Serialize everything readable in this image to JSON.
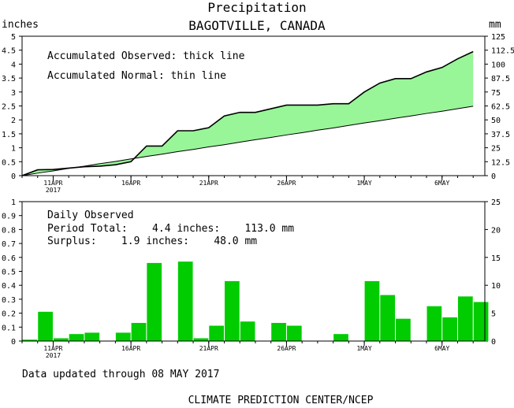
{
  "title": "Precipitation",
  "subtitle": "BAGOTVILLE, CANADA",
  "footer_updated": "Data updated through 08 MAY 2017",
  "footer_credit": "CLIMATE PREDICTION CENTER/NCEP",
  "colors": {
    "accum_fill": "#98f598",
    "bar_fill": "#00cc00",
    "line": "#000000"
  },
  "chart_data": [
    {
      "type": "area",
      "left_unit_label": "inches",
      "right_unit_label": "mm",
      "legend_observed": "Accumulated Observed: thick line",
      "legend_normal": "Accumulated Normal: thin line",
      "ylim": [
        0,
        5
      ],
      "yticks": [
        "0",
        "0.5",
        "1",
        "1.5",
        "2",
        "2.5",
        "3",
        "3.5",
        "4",
        "4.5",
        "5"
      ],
      "y2ticks": [
        "0",
        "12.5",
        "25",
        "37.5",
        "50",
        "62.5",
        "75",
        "87.5",
        "100",
        "112.5",
        "125"
      ],
      "x_day_range": [
        9,
        38
      ],
      "xticks": [
        {
          "day": 11,
          "label": "11APR",
          "sub": "2017"
        },
        {
          "day": 16,
          "label": "16APR",
          "sub": ""
        },
        {
          "day": 21,
          "label": "21APR",
          "sub": ""
        },
        {
          "day": 26,
          "label": "26APR",
          "sub": ""
        },
        {
          "day": 31,
          "label": "1MAY",
          "sub": ""
        },
        {
          "day": 36,
          "label": "6MAY",
          "sub": ""
        }
      ],
      "x": [
        9,
        10,
        11,
        12,
        13,
        14,
        15,
        16,
        17,
        18,
        19,
        20,
        21,
        22,
        23,
        24,
        25,
        26,
        27,
        28,
        29,
        30,
        31,
        32,
        33,
        34,
        35,
        36,
        37,
        38
      ],
      "series": [
        {
          "role": "observed",
          "values": [
            0,
            0.21,
            0.22,
            0.27,
            0.32,
            0.34,
            0.39,
            0.5,
            1.06,
            1.06,
            1.61,
            1.61,
            1.72,
            2.14,
            2.27,
            2.27,
            2.4,
            2.53,
            2.53,
            2.53,
            2.58,
            2.58,
            3.0,
            3.32,
            3.48,
            3.48,
            3.72,
            3.88,
            4.19,
            4.45
          ]
        },
        {
          "role": "normal",
          "values": [
            0,
            0.09,
            0.17,
            0.26,
            0.34,
            0.43,
            0.51,
            0.6,
            0.69,
            0.77,
            0.86,
            0.94,
            1.03,
            1.11,
            1.2,
            1.29,
            1.37,
            1.46,
            1.54,
            1.63,
            1.71,
            1.8,
            1.89,
            1.97,
            2.06,
            2.14,
            2.23,
            2.31,
            2.4,
            2.49
          ]
        }
      ]
    },
    {
      "type": "bar",
      "legend_title": "Daily Observed",
      "period_total": "Period Total:    4.4 inches:    113.0 mm",
      "surplus": "Surplus:    1.9 inches:    48.0 mm",
      "ylim": [
        0,
        1
      ],
      "yticks": [
        "0",
        "0.1",
        "0.2",
        "0.3",
        "0.4",
        "0.5",
        "0.6",
        "0.7",
        "0.8",
        "0.9",
        "1"
      ],
      "y2ticks": [
        "0",
        "5",
        "10",
        "15",
        "20",
        "25"
      ],
      "xticks": [
        {
          "day": 11,
          "label": "11APR",
          "sub": "2017"
        },
        {
          "day": 16,
          "label": "16APR",
          "sub": ""
        },
        {
          "day": 21,
          "label": "21APR",
          "sub": ""
        },
        {
          "day": 26,
          "label": "26APR",
          "sub": ""
        },
        {
          "day": 31,
          "label": "1MAY",
          "sub": ""
        },
        {
          "day": 36,
          "label": "6MAY",
          "sub": ""
        }
      ],
      "days": [
        9,
        10,
        11,
        12,
        13,
        14,
        15,
        16,
        17,
        18,
        19,
        20,
        21,
        22,
        23,
        24,
        25,
        26,
        27,
        28,
        29,
        30,
        31,
        32,
        33,
        34,
        35,
        36,
        37,
        38
      ],
      "values": [
        0.01,
        0.21,
        0.02,
        0.05,
        0.06,
        0,
        0.06,
        0.13,
        0.56,
        0,
        0.57,
        0.02,
        0.11,
        0.43,
        0.14,
        0,
        0.13,
        0.11,
        0,
        0,
        0.05,
        0,
        0.43,
        0.33,
        0.16,
        0,
        0.25,
        0.17,
        0.32,
        0.28
      ]
    }
  ]
}
